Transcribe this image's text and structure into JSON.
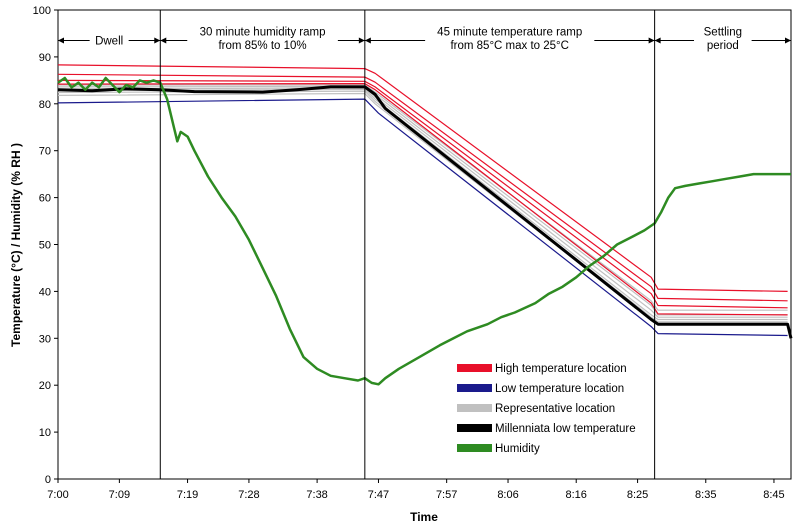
{
  "chart_data": {
    "type": "line",
    "xlabel": "Time",
    "ylabel": "Temperature (°C) / Humidity (% RH )",
    "ylim": [
      0,
      100
    ],
    "xlim_minutes": [
      0,
      107.5
    ],
    "y_ticks": [
      0,
      10,
      20,
      30,
      40,
      50,
      60,
      70,
      80,
      90,
      100
    ],
    "x_ticks": [
      {
        "label": "7:00",
        "t": 0
      },
      {
        "label": "7:09",
        "t": 9
      },
      {
        "label": "7:19",
        "t": 19
      },
      {
        "label": "7:28",
        "t": 28
      },
      {
        "label": "7:38",
        "t": 38
      },
      {
        "label": "7:47",
        "t": 47
      },
      {
        "label": "7:57",
        "t": 57
      },
      {
        "label": "8:06",
        "t": 66
      },
      {
        "label": "8:16",
        "t": 76
      },
      {
        "label": "8:25",
        "t": 85
      },
      {
        "label": "8:35",
        "t": 95
      },
      {
        "label": "8:45",
        "t": 105
      }
    ],
    "phase_boundaries_minutes": [
      15,
      45,
      87.5
    ],
    "annotations": [
      {
        "lines": [
          "Dwell"
        ],
        "from": 0,
        "to": 15,
        "y": 93.5
      },
      {
        "lines": [
          "30 minute humidity ramp",
          "from 85% to 10%"
        ],
        "from": 15,
        "to": 45,
        "y": 93.5
      },
      {
        "lines": [
          "45 minute temperature ramp",
          "from 85°C max to 25°C"
        ],
        "from": 45,
        "to": 87.5,
        "y": 93.5
      },
      {
        "lines": [
          "Settling",
          "period"
        ],
        "from": 87.5,
        "to": 107.5,
        "y": 93.5
      }
    ],
    "legend": {
      "placement": "lower-center",
      "entries": [
        {
          "label": "High temperature location",
          "color": "#e8102a"
        },
        {
          "label": "Low temperature location",
          "color": "#1a1a8c"
        },
        {
          "label": "Representative location",
          "color": "#c0c0c0"
        },
        {
          "label": "Millenniata low temperature",
          "color": "#000000"
        },
        {
          "label": "Humidity",
          "color": "#2e8b22"
        }
      ]
    },
    "series": [
      {
        "group": "High temperature location",
        "color": "#e8102a",
        "points": [
          [
            0,
            88.3
          ],
          [
            45,
            87.5
          ],
          [
            46.5,
            86.5
          ],
          [
            87,
            43
          ],
          [
            88,
            40.5
          ],
          [
            107,
            40
          ]
        ]
      },
      {
        "group": "High temperature location",
        "color": "#e8102a",
        "points": [
          [
            0,
            86.3
          ],
          [
            45,
            85.7
          ],
          [
            46.5,
            84.6
          ],
          [
            87,
            41
          ],
          [
            88,
            38.5
          ],
          [
            107,
            38
          ]
        ]
      },
      {
        "group": "High temperature location",
        "color": "#e8102a",
        "points": [
          [
            0,
            85
          ],
          [
            45,
            84.8
          ],
          [
            46.5,
            83.6
          ],
          [
            87,
            39.5
          ],
          [
            88,
            37
          ],
          [
            107,
            36.5
          ]
        ]
      },
      {
        "group": "High temperature location",
        "color": "#e8102a",
        "points": [
          [
            0,
            84.2
          ],
          [
            45,
            84.3
          ],
          [
            46.5,
            83
          ],
          [
            87,
            37.5
          ],
          [
            88,
            35.2
          ],
          [
            107,
            35
          ]
        ]
      },
      {
        "group": "Low temperature location",
        "color": "#1a1a8c",
        "points": [
          [
            0,
            80.2
          ],
          [
            45,
            81
          ],
          [
            47,
            78
          ],
          [
            87,
            32.5
          ],
          [
            88,
            31
          ],
          [
            107,
            30.6
          ]
        ]
      },
      {
        "group": "Representative location",
        "color": "#c0c0c0",
        "points": [
          [
            0,
            84
          ],
          [
            45,
            84
          ],
          [
            46.5,
            82.5
          ],
          [
            87,
            38
          ],
          [
            88,
            36
          ],
          [
            107,
            36
          ]
        ]
      },
      {
        "group": "Representative location",
        "color": "#c0c0c0",
        "points": [
          [
            0,
            83.6
          ],
          [
            45,
            83.7
          ],
          [
            46.5,
            82
          ],
          [
            87,
            37
          ],
          [
            88,
            35
          ],
          [
            107,
            35
          ]
        ]
      },
      {
        "group": "Representative location",
        "color": "#c0c0c0",
        "points": [
          [
            0,
            83.2
          ],
          [
            45,
            83.4
          ],
          [
            46.5,
            81.5
          ],
          [
            87,
            36
          ],
          [
            88,
            34.5
          ],
          [
            107,
            34.5
          ]
        ]
      },
      {
        "group": "Representative location",
        "color": "#c0c0c0",
        "points": [
          [
            0,
            82.8
          ],
          [
            45,
            83.1
          ],
          [
            46.5,
            81
          ],
          [
            87,
            35
          ],
          [
            88,
            34
          ],
          [
            107,
            34
          ]
        ]
      },
      {
        "group": "Representative location",
        "color": "#c0c0c0",
        "points": [
          [
            0,
            82.4
          ],
          [
            45,
            82.7
          ],
          [
            46.5,
            80.5
          ],
          [
            87,
            34.5
          ],
          [
            88,
            33.5
          ],
          [
            107,
            33.5
          ]
        ]
      },
      {
        "group": "Representative location",
        "color": "#c0c0c0",
        "points": [
          [
            0,
            81.8
          ],
          [
            45,
            82.2
          ],
          [
            46.5,
            80
          ],
          [
            87,
            34
          ],
          [
            88,
            33
          ],
          [
            107,
            33
          ]
        ]
      },
      {
        "group": "Millenniata low temperature",
        "color": "#000000",
        "points": [
          [
            0,
            83
          ],
          [
            5,
            82.8
          ],
          [
            10,
            83.2
          ],
          [
            15,
            83
          ],
          [
            20,
            82.6
          ],
          [
            30,
            82.5
          ],
          [
            35,
            83
          ],
          [
            40,
            83.6
          ],
          [
            45,
            83.6
          ],
          [
            46.5,
            82
          ],
          [
            48,
            79
          ],
          [
            87,
            34
          ],
          [
            88,
            33
          ],
          [
            107,
            33
          ],
          [
            107.5,
            30
          ]
        ]
      },
      {
        "group": "Humidity",
        "color": "#2e8b22",
        "points": [
          [
            0,
            84.5
          ],
          [
            1,
            85.5
          ],
          [
            2,
            83.5
          ],
          [
            3,
            84.5
          ],
          [
            4,
            83
          ],
          [
            5,
            84.5
          ],
          [
            6,
            83.5
          ],
          [
            7,
            85.5
          ],
          [
            8,
            84
          ],
          [
            9,
            82.5
          ],
          [
            10,
            84
          ],
          [
            11,
            83.5
          ],
          [
            12,
            85
          ],
          [
            13,
            84.5
          ],
          [
            14,
            85
          ],
          [
            15,
            84.5
          ],
          [
            16,
            81
          ],
          [
            17,
            75
          ],
          [
            17.5,
            72
          ],
          [
            18,
            74
          ],
          [
            19,
            73
          ],
          [
            20,
            70
          ],
          [
            22,
            64.5
          ],
          [
            24,
            60
          ],
          [
            26,
            56
          ],
          [
            28,
            51
          ],
          [
            30,
            45
          ],
          [
            32,
            39
          ],
          [
            34,
            32
          ],
          [
            36,
            26
          ],
          [
            38,
            23.5
          ],
          [
            40,
            22
          ],
          [
            42,
            21.5
          ],
          [
            44,
            21
          ],
          [
            45,
            21.5
          ],
          [
            46,
            20.5
          ],
          [
            47,
            20.2
          ],
          [
            48,
            21.5
          ],
          [
            50,
            23.5
          ],
          [
            53,
            26
          ],
          [
            56,
            28.5
          ],
          [
            58,
            30
          ],
          [
            60,
            31.5
          ],
          [
            63,
            33
          ],
          [
            65,
            34.5
          ],
          [
            67,
            35.5
          ],
          [
            70,
            37.5
          ],
          [
            72,
            39.5
          ],
          [
            74,
            41
          ],
          [
            76,
            43
          ],
          [
            78,
            45.5
          ],
          [
            80,
            47.5
          ],
          [
            82,
            50
          ],
          [
            84,
            51.5
          ],
          [
            86,
            53
          ],
          [
            87.5,
            54.5
          ],
          [
            88.5,
            57
          ],
          [
            89.5,
            60
          ],
          [
            90.5,
            62
          ],
          [
            92,
            62.5
          ],
          [
            94,
            63
          ],
          [
            96,
            63.5
          ],
          [
            98,
            64
          ],
          [
            100,
            64.5
          ],
          [
            102,
            65
          ],
          [
            104,
            65
          ],
          [
            106,
            65
          ],
          [
            107.5,
            65
          ]
        ]
      }
    ]
  }
}
